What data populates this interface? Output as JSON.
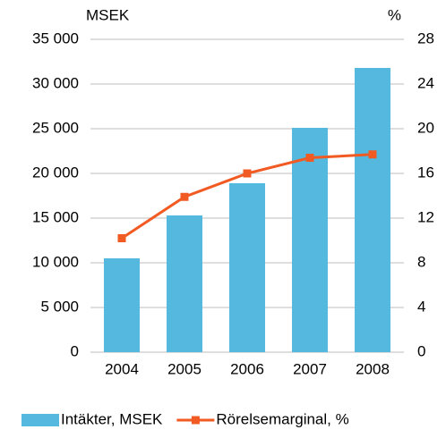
{
  "chart_data": {
    "type": "bar",
    "y_unit_label": "MSEK",
    "y2_unit_label": "%",
    "categories": [
      "2004",
      "2005",
      "2006",
      "2007",
      "2008"
    ],
    "series": [
      {
        "name": "Intäkter, MSEK",
        "type": "bar",
        "color": "#55b8df",
        "axis": "y",
        "values": [
          10500,
          15300,
          18900,
          25100,
          31800
        ]
      },
      {
        "name": "Rörelsemarginal, %",
        "type": "line",
        "color": "#f15a22",
        "axis": "y2",
        "values": [
          10.2,
          13.9,
          16.0,
          17.4,
          17.7
        ]
      }
    ],
    "ylim": [
      0,
      35000
    ],
    "yticks": [
      0,
      {
        "value": 5000,
        "label": "5 000"
      },
      {
        "value": 10000,
        "label": "10 000"
      },
      {
        "value": 15000,
        "label": "15 000"
      },
      {
        "value": 20000,
        "label": "20 000"
      },
      {
        "value": 25000,
        "label": "25 000"
      },
      {
        "value": 30000,
        "label": "30 000"
      },
      {
        "value": 35000,
        "label": "35 000"
      }
    ],
    "y2lim": [
      0,
      28
    ],
    "y2ticks": [
      0,
      4,
      8,
      12,
      16,
      20,
      24,
      28
    ],
    "grid": true,
    "legend": "bottom"
  }
}
